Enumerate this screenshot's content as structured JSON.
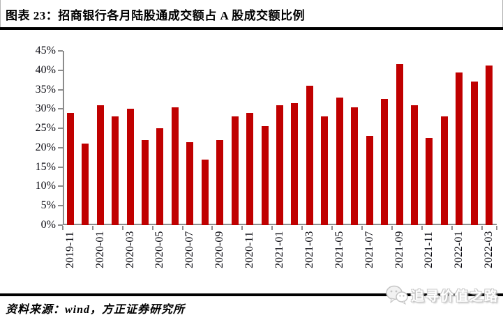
{
  "header": {
    "title": "图表 23：招商银行各月陆股通成交额占 A 股成交额比例"
  },
  "footer": {
    "source": "资料来源：wind，方正证券研究所"
  },
  "watermark": {
    "icon": "wechat-icon",
    "text": "追寻价值之路"
  },
  "colors": {
    "bar": "#C00000",
    "axis": "#8C8C8C",
    "tick_label": "#0d0d14",
    "rule": "#000000",
    "watermark_gray": "#c9c9c9"
  },
  "chart_data": {
    "type": "bar",
    "title": "图表 23：招商银行各月陆股通成交额占 A 股成交额比例",
    "categories": [
      "2019-11",
      "2019-12",
      "2020-01",
      "2020-02",
      "2020-03",
      "2020-04",
      "2020-05",
      "2020-06",
      "2020-07",
      "2020-08",
      "2020-09",
      "2020-10",
      "2020-11",
      "2020-12",
      "2021-01",
      "2021-02",
      "2021-03",
      "2021-04",
      "2021-05",
      "2021-06",
      "2021-07",
      "2021-08",
      "2021-09",
      "2021-10",
      "2021-11",
      "2021-12",
      "2022-01",
      "2022-02",
      "2022-03"
    ],
    "values": [
      29,
      21,
      31,
      28,
      30,
      22,
      25,
      30.5,
      21.5,
      17,
      22,
      28,
      29,
      25.5,
      31,
      31.5,
      36,
      28,
      33,
      30.5,
      23,
      32.5,
      41.5,
      31,
      22.5,
      28,
      39.5,
      37,
      41.3
    ],
    "xlabel": "",
    "ylabel": "",
    "ylim": [
      0,
      45
    ],
    "ytick_step": 5,
    "ytick_suffix": "%",
    "xtick_label_every": 2,
    "grid": false,
    "legend_position": "none",
    "bar_color": "#C00000",
    "axis_color": "#8C8C8C"
  }
}
